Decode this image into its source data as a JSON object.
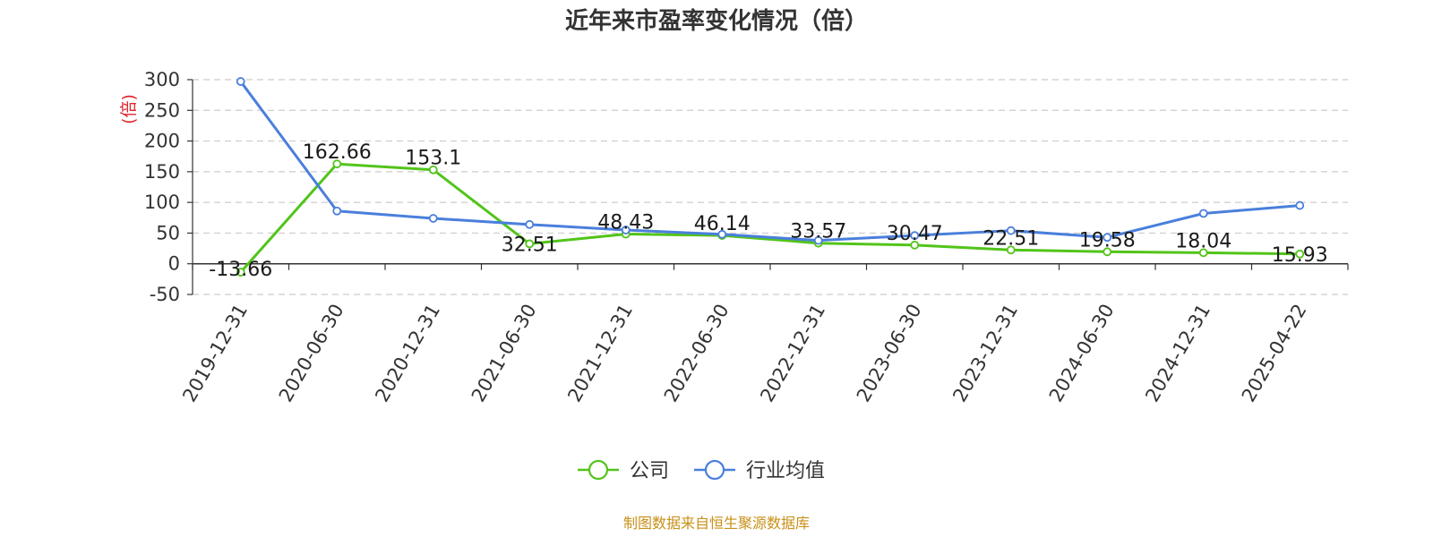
{
  "chart_data": {
    "type": "line",
    "title": "近年来市盈率变化情况（倍）",
    "ylabel": "(倍)",
    "xlabel": "",
    "categories": [
      "2019-12-31",
      "2020-06-30",
      "2020-12-31",
      "2021-06-30",
      "2021-12-31",
      "2022-06-30",
      "2022-12-31",
      "2023-06-30",
      "2023-12-31",
      "2024-06-30",
      "2024-12-31",
      "2025-04-22"
    ],
    "ylim": [
      -50,
      300
    ],
    "yticks": [
      -50,
      0,
      50,
      100,
      150,
      200,
      250,
      300
    ],
    "grid": true,
    "legend_position": "bottom-center",
    "series": [
      {
        "name": "公司",
        "color": "#52c41a",
        "values": [
          -13.66,
          162.66,
          153.1,
          32.51,
          48.43,
          46.14,
          33.57,
          30.47,
          22.51,
          19.58,
          18.04,
          15.93
        ],
        "labels": [
          "-13.66",
          "162.66",
          "153.1",
          "32.51",
          "48.43",
          "46.14",
          "33.57",
          "30.47",
          "22.51",
          "19.58",
          "18.04",
          "15.93"
        ]
      },
      {
        "name": "行业均值",
        "color": "#4a7fdc",
        "values": [
          297,
          86,
          74,
          64,
          55,
          48,
          38,
          46,
          54,
          43,
          82,
          95
        ]
      }
    ]
  },
  "footer": {
    "source": "制图数据来自恒生聚源数据库"
  }
}
